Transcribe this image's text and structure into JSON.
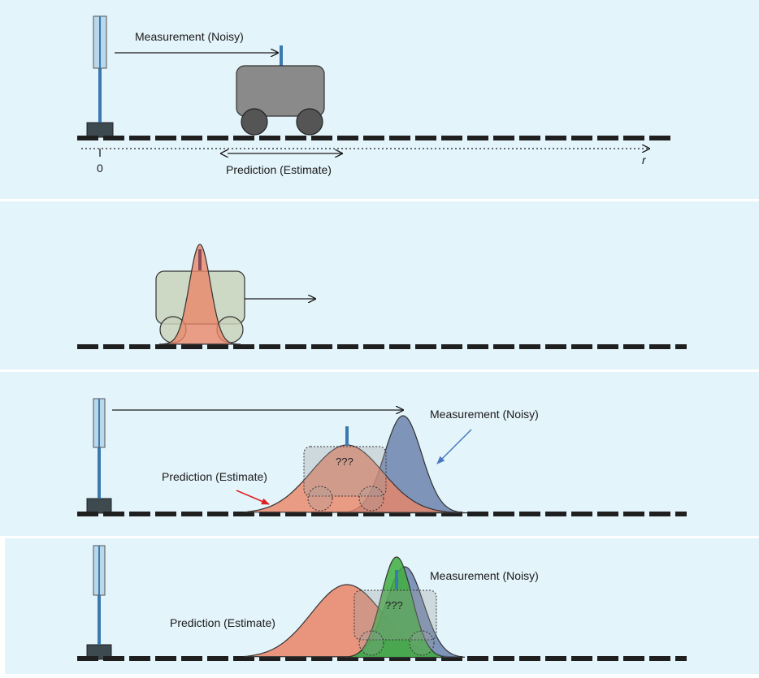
{
  "colors": {
    "panel_bg": "#e4f4fb",
    "rail": "#1f1f1f",
    "cart_body": "#8a8a8a",
    "wheel": "#555555",
    "pole": "#3a7ab0",
    "antenna": "#3a7ab0",
    "prediction": "#ea8466",
    "measurement": "#6c83ad",
    "fused": "#3fae3f",
    "arrow_red": "#e02020",
    "arrow_blue": "#4a78c0"
  },
  "panel1": {
    "measurement_label": "Measurement (Noisy)",
    "prediction_label": "Prediction (Estimate)",
    "origin_label": "0",
    "axis_label": "r"
  },
  "panel3": {
    "measurement_label": "Measurement (Noisy)",
    "prediction_label": "Prediction (Estimate)",
    "unknown_label": "???"
  },
  "panel4": {
    "measurement_label": "Measurement (Noisy)",
    "prediction_label": "Prediction (Estimate)",
    "unknown_label": "???"
  }
}
